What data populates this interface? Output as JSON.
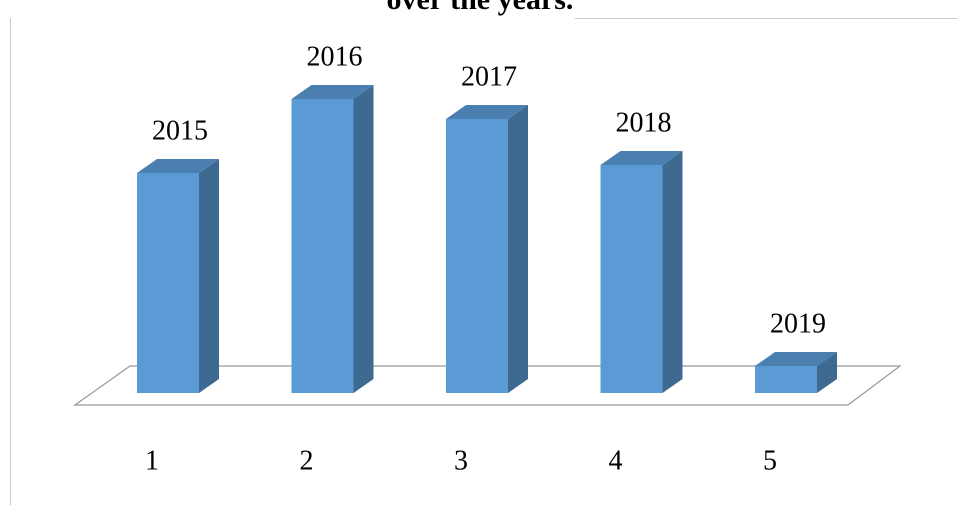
{
  "chart_data": {
    "type": "bar3d",
    "title": "over the years.",
    "categories": [
      "1",
      "2",
      "3",
      "4",
      "5"
    ],
    "labels": [
      "2015",
      "2016",
      "2017",
      "2018",
      "2019"
    ],
    "values": [
      220,
      294,
      274,
      228,
      27
    ],
    "color": "#5b9bd5"
  }
}
